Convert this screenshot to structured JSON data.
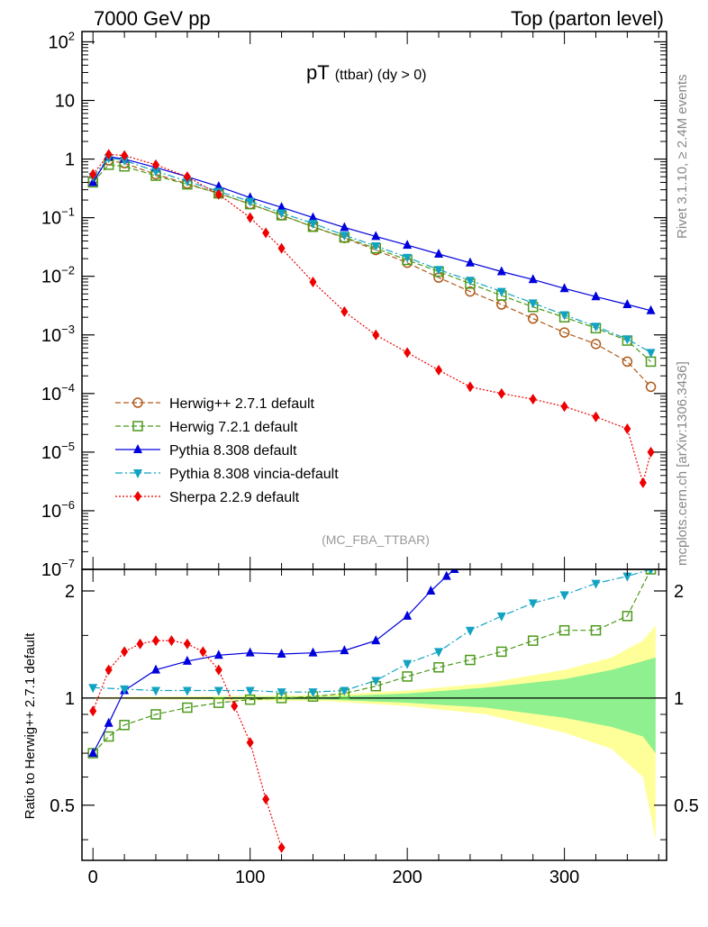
{
  "header": {
    "left": "7000 GeV pp",
    "right": "Top (parton level)"
  },
  "side": {
    "top": "Rivet 3.1.10, ≥ 2.4M events",
    "bottom": "mcplots.cern.ch [arXiv:1306.3436]"
  },
  "chart_data": [
    {
      "type": "line",
      "title_main": "pT",
      "title_sub": "(ttbar) (dy > 0)",
      "watermark": "(MC_FBA_TTBAR)",
      "xlabel": "",
      "ylabel": "",
      "y_scale": "log",
      "ylim": [
        1e-07,
        150
      ],
      "xlim": [
        -7,
        365
      ],
      "y_ticks": [
        {
          "exp": 2,
          "label": "10",
          "sup": "2"
        },
        {
          "exp": 1,
          "label": "10",
          "sup": ""
        },
        {
          "exp": 0,
          "label": "1",
          "sup": ""
        },
        {
          "exp": -1,
          "label": "10",
          "sup": "−1"
        },
        {
          "exp": -2,
          "label": "10",
          "sup": "−2"
        },
        {
          "exp": -3,
          "label": "10",
          "sup": "−3"
        },
        {
          "exp": -4,
          "label": "10",
          "sup": "−4"
        },
        {
          "exp": -5,
          "label": "10",
          "sup": "−5"
        },
        {
          "exp": -6,
          "label": "10",
          "sup": "−6"
        },
        {
          "exp": -7,
          "label": "10",
          "sup": "−7"
        }
      ],
      "legend_position": "bottom-left",
      "series": [
        {
          "name": "Herwig++ 2.7.1 default",
          "color": "#b05a1a",
          "marker": "circle-open",
          "dash": "6,3",
          "points": [
            [
              0,
              0.45
            ],
            [
              10,
              0.95
            ],
            [
              20,
              0.85
            ],
            [
              40,
              0.55
            ],
            [
              60,
              0.38
            ],
            [
              80,
              0.26
            ],
            [
              100,
              0.17
            ],
            [
              120,
              0.11
            ],
            [
              140,
              0.07
            ],
            [
              160,
              0.045
            ],
            [
              180,
              0.028
            ],
            [
              200,
              0.017
            ],
            [
              220,
              0.0095
            ],
            [
              240,
              0.0055
            ],
            [
              260,
              0.0033
            ],
            [
              280,
              0.0019
            ],
            [
              300,
              0.0011
            ],
            [
              320,
              0.0007
            ],
            [
              340,
              0.00035
            ],
            [
              355,
              0.00013
            ]
          ]
        },
        {
          "name": "Herwig 7.2.1 default",
          "color": "#4c9a1a",
          "marker": "square-open",
          "dash": "6,3",
          "points": [
            [
              0,
              0.4
            ],
            [
              10,
              0.8
            ],
            [
              20,
              0.75
            ],
            [
              40,
              0.52
            ],
            [
              60,
              0.37
            ],
            [
              80,
              0.26
            ],
            [
              100,
              0.17
            ],
            [
              120,
              0.11
            ],
            [
              140,
              0.07
            ],
            [
              160,
              0.046
            ],
            [
              180,
              0.03
            ],
            [
              200,
              0.019
            ],
            [
              220,
              0.012
            ],
            [
              240,
              0.0075
            ],
            [
              260,
              0.0047
            ],
            [
              280,
              0.003
            ],
            [
              300,
              0.002
            ],
            [
              320,
              0.0013
            ],
            [
              340,
              0.0008
            ],
            [
              355,
              0.00035
            ]
          ]
        },
        {
          "name": "Pythia 8.308 default",
          "color": "#0000dd",
          "marker": "triangle-up",
          "dash": "",
          "points": [
            [
              0,
              0.4
            ],
            [
              10,
              1.1
            ],
            [
              20,
              1.0
            ],
            [
              40,
              0.72
            ],
            [
              60,
              0.5
            ],
            [
              80,
              0.34
            ],
            [
              100,
              0.22
            ],
            [
              120,
              0.15
            ],
            [
              140,
              0.1
            ],
            [
              160,
              0.068
            ],
            [
              180,
              0.048
            ],
            [
              200,
              0.034
            ],
            [
              220,
              0.024
            ],
            [
              240,
              0.017
            ],
            [
              260,
              0.012
            ],
            [
              280,
              0.0088
            ],
            [
              300,
              0.0062
            ],
            [
              320,
              0.0045
            ],
            [
              340,
              0.0033
            ],
            [
              355,
              0.0026
            ]
          ]
        },
        {
          "name": "Pythia 8.308 vincia-default",
          "color": "#13a3c2",
          "marker": "triangle-down",
          "dash": "8,3,2,3",
          "points": [
            [
              0,
              0.5
            ],
            [
              10,
              1.05
            ],
            [
              20,
              0.95
            ],
            [
              40,
              0.62
            ],
            [
              60,
              0.42
            ],
            [
              80,
              0.28
            ],
            [
              100,
              0.19
            ],
            [
              120,
              0.12
            ],
            [
              140,
              0.08
            ],
            [
              160,
              0.05
            ],
            [
              180,
              0.033
            ],
            [
              200,
              0.021
            ],
            [
              220,
              0.013
            ],
            [
              240,
              0.0085
            ],
            [
              260,
              0.0055
            ],
            [
              280,
              0.0035
            ],
            [
              300,
              0.0022
            ],
            [
              320,
              0.0014
            ],
            [
              340,
              0.00085
            ],
            [
              355,
              0.0005
            ]
          ]
        },
        {
          "name": "Sherpa 2.2.9 default",
          "color": "#ee0000",
          "marker": "diamond",
          "dash": "2,2",
          "points": [
            [
              0,
              0.55
            ],
            [
              10,
              1.2
            ],
            [
              20,
              1.15
            ],
            [
              40,
              0.8
            ],
            [
              60,
              0.5
            ],
            [
              80,
              0.25
            ],
            [
              100,
              0.1
            ],
            [
              110,
              0.055
            ],
            [
              120,
              0.03
            ],
            [
              140,
              0.008
            ],
            [
              160,
              0.0025
            ],
            [
              180,
              0.001
            ],
            [
              200,
              0.0005
            ],
            [
              220,
              0.00025
            ],
            [
              240,
              0.00013
            ],
            [
              260,
              0.0001
            ],
            [
              280,
              8e-05
            ],
            [
              300,
              6e-05
            ],
            [
              320,
              4e-05
            ],
            [
              340,
              2.5e-05
            ],
            [
              350,
              3e-06
            ],
            [
              355,
              1e-05
            ]
          ]
        }
      ]
    },
    {
      "type": "line",
      "ylabel": "Ratio to Herwig++ 2.7.1 default",
      "xlabel": "",
      "ylim": [
        0.35,
        2.3
      ],
      "xlim": [
        -7,
        365
      ],
      "y_ticks": [
        0.5,
        1,
        2
      ],
      "x_ticks": [
        0,
        100,
        200,
        300
      ],
      "reference_line": 1,
      "bands": [
        {
          "color": "#ffff99",
          "points": [
            [
              0,
              0.995,
              1.005
            ],
            [
              150,
              0.98,
              1.02
            ],
            [
              200,
              0.95,
              1.05
            ],
            [
              250,
              0.9,
              1.1
            ],
            [
              300,
              0.8,
              1.2
            ],
            [
              330,
              0.72,
              1.3
            ],
            [
              350,
              0.6,
              1.45
            ],
            [
              358,
              0.4,
              1.6
            ]
          ]
        },
        {
          "color": "#8ef08e",
          "points": [
            [
              0,
              0.998,
              1.002
            ],
            [
              150,
              0.99,
              1.01
            ],
            [
              200,
              0.97,
              1.03
            ],
            [
              250,
              0.94,
              1.07
            ],
            [
              300,
              0.88,
              1.13
            ],
            [
              330,
              0.83,
              1.2
            ],
            [
              350,
              0.78,
              1.27
            ],
            [
              358,
              0.7,
              1.3
            ]
          ]
        }
      ],
      "series": [
        {
          "name": "Herwig 7.2.1 default",
          "color": "#4c9a1a",
          "marker": "square-open",
          "dash": "6,3",
          "points": [
            [
              0,
              0.7
            ],
            [
              10,
              0.78
            ],
            [
              20,
              0.84
            ],
            [
              40,
              0.9
            ],
            [
              60,
              0.94
            ],
            [
              80,
              0.97
            ],
            [
              100,
              0.99
            ],
            [
              120,
              1.0
            ],
            [
              140,
              1.01
            ],
            [
              160,
              1.03
            ],
            [
              180,
              1.08
            ],
            [
              200,
              1.15
            ],
            [
              220,
              1.22
            ],
            [
              240,
              1.28
            ],
            [
              260,
              1.35
            ],
            [
              280,
              1.45
            ],
            [
              300,
              1.55
            ],
            [
              320,
              1.55
            ],
            [
              340,
              1.7
            ],
            [
              355,
              2.3
            ]
          ]
        },
        {
          "name": "Pythia 8.308 default",
          "color": "#0000dd",
          "marker": "triangle-up",
          "dash": "",
          "points": [
            [
              0,
              0.7
            ],
            [
              10,
              0.85
            ],
            [
              20,
              1.05
            ],
            [
              40,
              1.2
            ],
            [
              60,
              1.27
            ],
            [
              80,
              1.32
            ],
            [
              100,
              1.34
            ],
            [
              120,
              1.33
            ],
            [
              140,
              1.34
            ],
            [
              160,
              1.36
            ],
            [
              180,
              1.45
            ],
            [
              200,
              1.7
            ],
            [
              215,
              2.0
            ],
            [
              225,
              2.2
            ],
            [
              230,
              2.3
            ]
          ]
        },
        {
          "name": "Pythia 8.308 vincia-default",
          "color": "#13a3c2",
          "marker": "triangle-down",
          "dash": "8,3,2,3",
          "points": [
            [
              0,
              1.07
            ],
            [
              20,
              1.06
            ],
            [
              40,
              1.05
            ],
            [
              60,
              1.05
            ],
            [
              80,
              1.05
            ],
            [
              100,
              1.05
            ],
            [
              120,
              1.04
            ],
            [
              140,
              1.04
            ],
            [
              160,
              1.05
            ],
            [
              180,
              1.12
            ],
            [
              200,
              1.25
            ],
            [
              220,
              1.35
            ],
            [
              240,
              1.55
            ],
            [
              260,
              1.7
            ],
            [
              280,
              1.85
            ],
            [
              300,
              1.95
            ],
            [
              320,
              2.1
            ],
            [
              340,
              2.2
            ],
            [
              355,
              2.3
            ]
          ]
        },
        {
          "name": "Sherpa 2.2.9 default",
          "color": "#ee0000",
          "marker": "diamond",
          "dash": "2,2",
          "points": [
            [
              0,
              0.92
            ],
            [
              10,
              1.2
            ],
            [
              20,
              1.35
            ],
            [
              30,
              1.42
            ],
            [
              40,
              1.45
            ],
            [
              50,
              1.45
            ],
            [
              60,
              1.42
            ],
            [
              70,
              1.35
            ],
            [
              80,
              1.2
            ],
            [
              90,
              0.95
            ],
            [
              100,
              0.75
            ],
            [
              110,
              0.52
            ],
            [
              120,
              0.38
            ]
          ]
        }
      ]
    }
  ]
}
